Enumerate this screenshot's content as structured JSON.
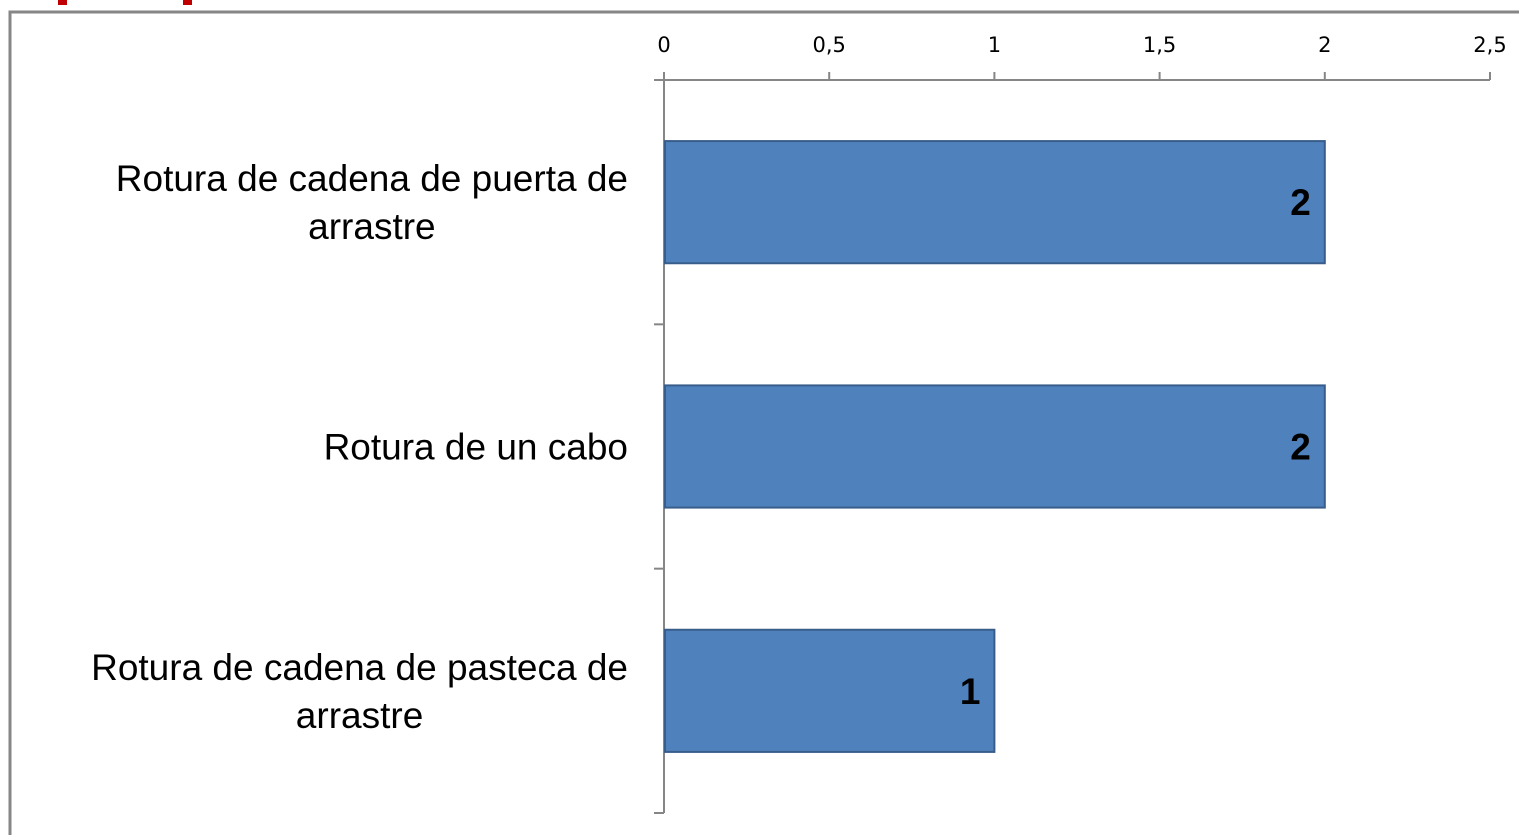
{
  "chart_data": {
    "type": "bar",
    "orientation": "horizontal",
    "categories": [
      "Rotura de cadena de puerta de arrastre",
      "Rotura de un cabo",
      "Rotura de cadena de pasteca de arrastre"
    ],
    "category_label_lines": [
      [
        "Rotura de cadena de puerta de",
        "arrastre"
      ],
      [
        "Rotura de un cabo"
      ],
      [
        "Rotura de cadena de pasteca de",
        "arrastre"
      ]
    ],
    "values": [
      2,
      2,
      1
    ],
    "data_labels": [
      "2",
      "2",
      "1"
    ],
    "xlim": [
      0,
      2.5
    ],
    "x_ticks": [
      0,
      0.5,
      1,
      1.5,
      2,
      2.5
    ],
    "x_tick_labels": [
      "0",
      "0,5",
      "1",
      "1,5",
      "2",
      "2,5"
    ],
    "x_axis_position": "top",
    "grid": false,
    "legend": "none",
    "bar_color": "#4f81bd",
    "bar_edge_color": "#385d8a",
    "frame_color": "#868686",
    "accent_color": "#c00000"
  }
}
